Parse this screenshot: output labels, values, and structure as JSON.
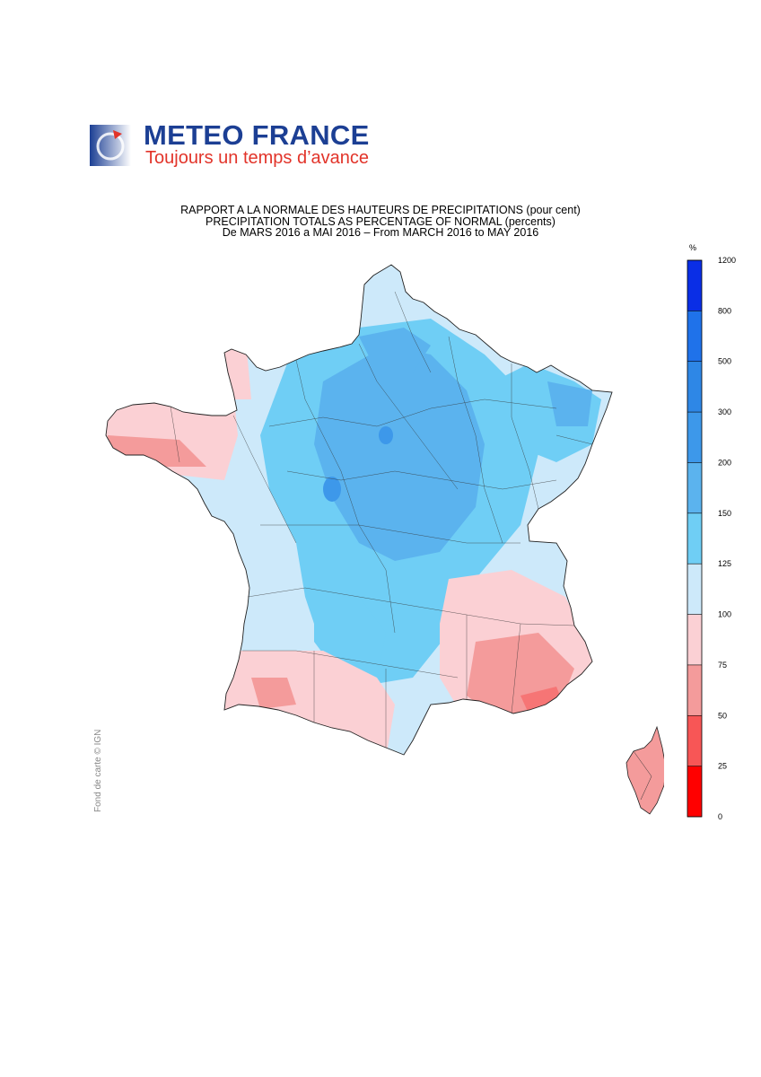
{
  "brand": {
    "name": "METEO FRANCE",
    "tagline": "Toujours un temps d’avance",
    "colors": {
      "name": "#1c3f94",
      "tagline": "#e2342a"
    }
  },
  "titles": {
    "line1": "RAPPORT A LA NORMALE DES HAUTEURS DE PRECIPITATIONS (pour cent)",
    "line2": "PRECIPITATION TOTALS AS PERCENTAGE OF NORMAL (percents)",
    "line3": "De MARS 2016 a MAI 2016 – From MARCH 2016 to MAY 2016"
  },
  "credit": "Fond de carte © IGN",
  "legend": {
    "unit": "%",
    "ticks": [
      "0",
      "25",
      "50",
      "75",
      "100",
      "125",
      "150",
      "200",
      "300",
      "500",
      "800",
      "1200"
    ],
    "colors": [
      "#ff0000",
      "#f75656",
      "#f49b9b",
      "#fbd0d4",
      "#cde9fa",
      "#6fcef5",
      "#5bb3ee",
      "#3d98ea",
      "#2e87e6",
      "#1f72ea",
      "#0a2ee6"
    ]
  }
}
